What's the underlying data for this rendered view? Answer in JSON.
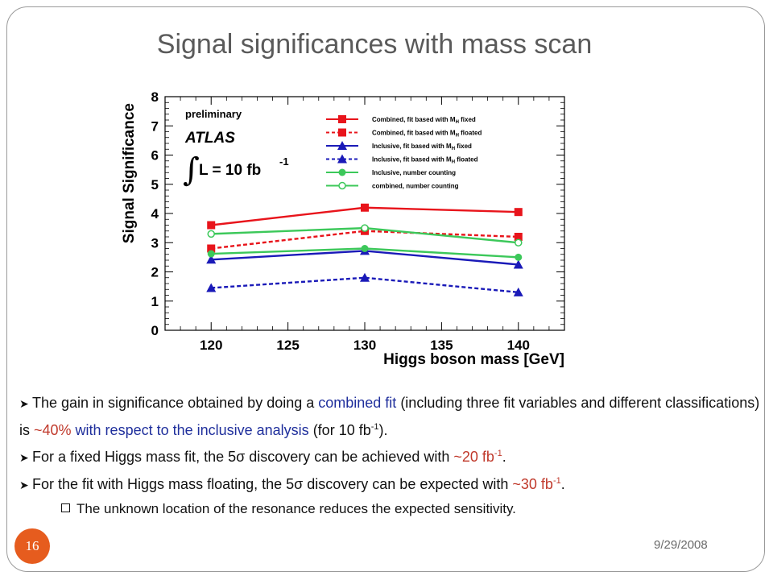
{
  "slide": {
    "title": "Signal significances with mass scan",
    "date": "9/29/2008",
    "page_number": "16",
    "colors": {
      "badge": "#e65c1e",
      "highlight_blue": "#1f2f9c",
      "highlight_red": "#c0392b"
    }
  },
  "bullets": [
    {
      "parts": [
        "The gain in significance obtained by doing a ",
        "combined fit",
        " (including three fit variables and different classifications) is ",
        "~40%",
        " with respect to the inclusive analysis",
        " (for 10 fb",
        "-1",
        ")."
      ]
    },
    {
      "parts": [
        "For a fixed Higgs mass fit, the 5σ discovery can be achieved with ",
        "~20 fb",
        "-1",
        "."
      ]
    },
    {
      "parts": [
        "For the fit with Higgs mass floating, the 5σ discovery can be expected with ",
        "~30 fb",
        "-1",
        "."
      ]
    }
  ],
  "sub_bullet": "The unknown location of the resonance reduces the expected sensitivity.",
  "chart_data": {
    "type": "line",
    "xlabel": "Higgs boson mass [GeV]",
    "ylabel": "Signal Significance",
    "xlim": [
      117,
      143
    ],
    "ylim": [
      0,
      8
    ],
    "x_ticks": [
      "120",
      "125",
      "130",
      "135",
      "140"
    ],
    "y_ticks": [
      "0",
      "1",
      "2",
      "3",
      "4",
      "5",
      "6",
      "7",
      "8"
    ],
    "annotations": {
      "preliminary": "preliminary",
      "experiment": "ATLAS",
      "lumi": "L = 10 fb",
      "lumi_sup": "-1"
    },
    "legend_placement": "top-right",
    "x": [
      120,
      130,
      140
    ],
    "series": [
      {
        "name": "Combined, fit based with M",
        "name_sub": "H",
        "name_end": " fixed",
        "values": [
          3.6,
          4.2,
          4.05
        ],
        "color": "#e8141b",
        "dash": "solid",
        "marker": "square"
      },
      {
        "name": "Combined, fit based with M",
        "name_sub": "H",
        "name_end": " floated",
        "values": [
          2.8,
          3.4,
          3.2
        ],
        "color": "#e8141b",
        "dash": "dashed",
        "marker": "square"
      },
      {
        "name": "Inclusive, fit based with M",
        "name_sub": "H",
        "name_end": " fixed",
        "values": [
          2.42,
          2.72,
          2.25
        ],
        "color": "#1a1ab8",
        "dash": "solid",
        "marker": "triangle"
      },
      {
        "name": "Inclusive, fit based with M",
        "name_sub": "H",
        "name_end": " floated",
        "values": [
          1.45,
          1.8,
          1.3
        ],
        "color": "#1a1ab8",
        "dash": "dashed",
        "marker": "triangle"
      },
      {
        "name": "Inclusive, number counting",
        "name_sub": "",
        "name_end": "",
        "values": [
          2.62,
          2.8,
          2.5
        ],
        "color": "#3cc85a",
        "dash": "solid",
        "marker": "circle"
      },
      {
        "name": "combined, number counting",
        "name_sub": "",
        "name_end": "",
        "values": [
          3.3,
          3.5,
          3.0
        ],
        "color": "#3cc85a",
        "dash": "solid",
        "marker": "open-circle"
      }
    ]
  }
}
